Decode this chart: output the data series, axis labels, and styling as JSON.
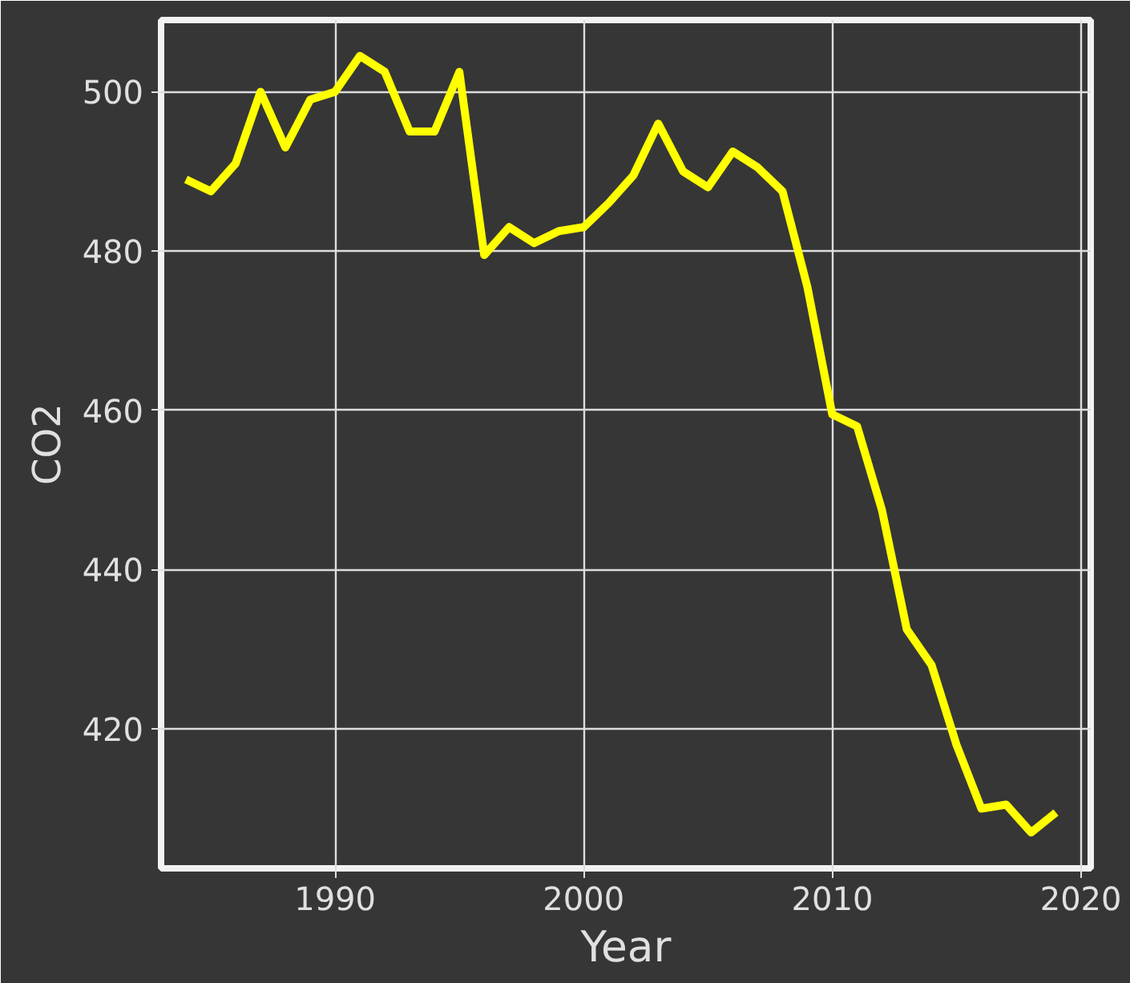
{
  "chart_data": {
    "type": "line",
    "xlabel": "Year",
    "ylabel": "CO2",
    "x": [
      1984,
      1985,
      1986,
      1987,
      1988,
      1989,
      1990,
      1991,
      1992,
      1993,
      1994,
      1995,
      1996,
      1997,
      1998,
      1999,
      2000,
      2001,
      2002,
      2003,
      2004,
      2005,
      2006,
      2007,
      2008,
      2009,
      2010,
      2011,
      2012,
      2013,
      2014,
      2015,
      2016,
      2017,
      2018,
      2019
    ],
    "series": [
      {
        "color": "#ffff00",
        "values": [
          489,
          487.5,
          491,
          500,
          493,
          499,
          500,
          504.5,
          502.5,
          495,
          495,
          502.5,
          479.5,
          483,
          481,
          482.5,
          483,
          486,
          489.5,
          496,
          490,
          488,
          492.5,
          490.5,
          487.5,
          475.5,
          459.5,
          458,
          447.5,
          432.5,
          428,
          418,
          410,
          410.5,
          407,
          409.5
        ]
      }
    ],
    "xlim": [
      1983,
      2020.4
    ],
    "ylim": [
      402.5,
      509
    ],
    "xticks": [
      1990,
      2000,
      2010,
      2020
    ],
    "yticks": [
      420,
      440,
      460,
      480,
      500
    ],
    "grid": true,
    "marker": "none",
    "line_style": "solid"
  }
}
